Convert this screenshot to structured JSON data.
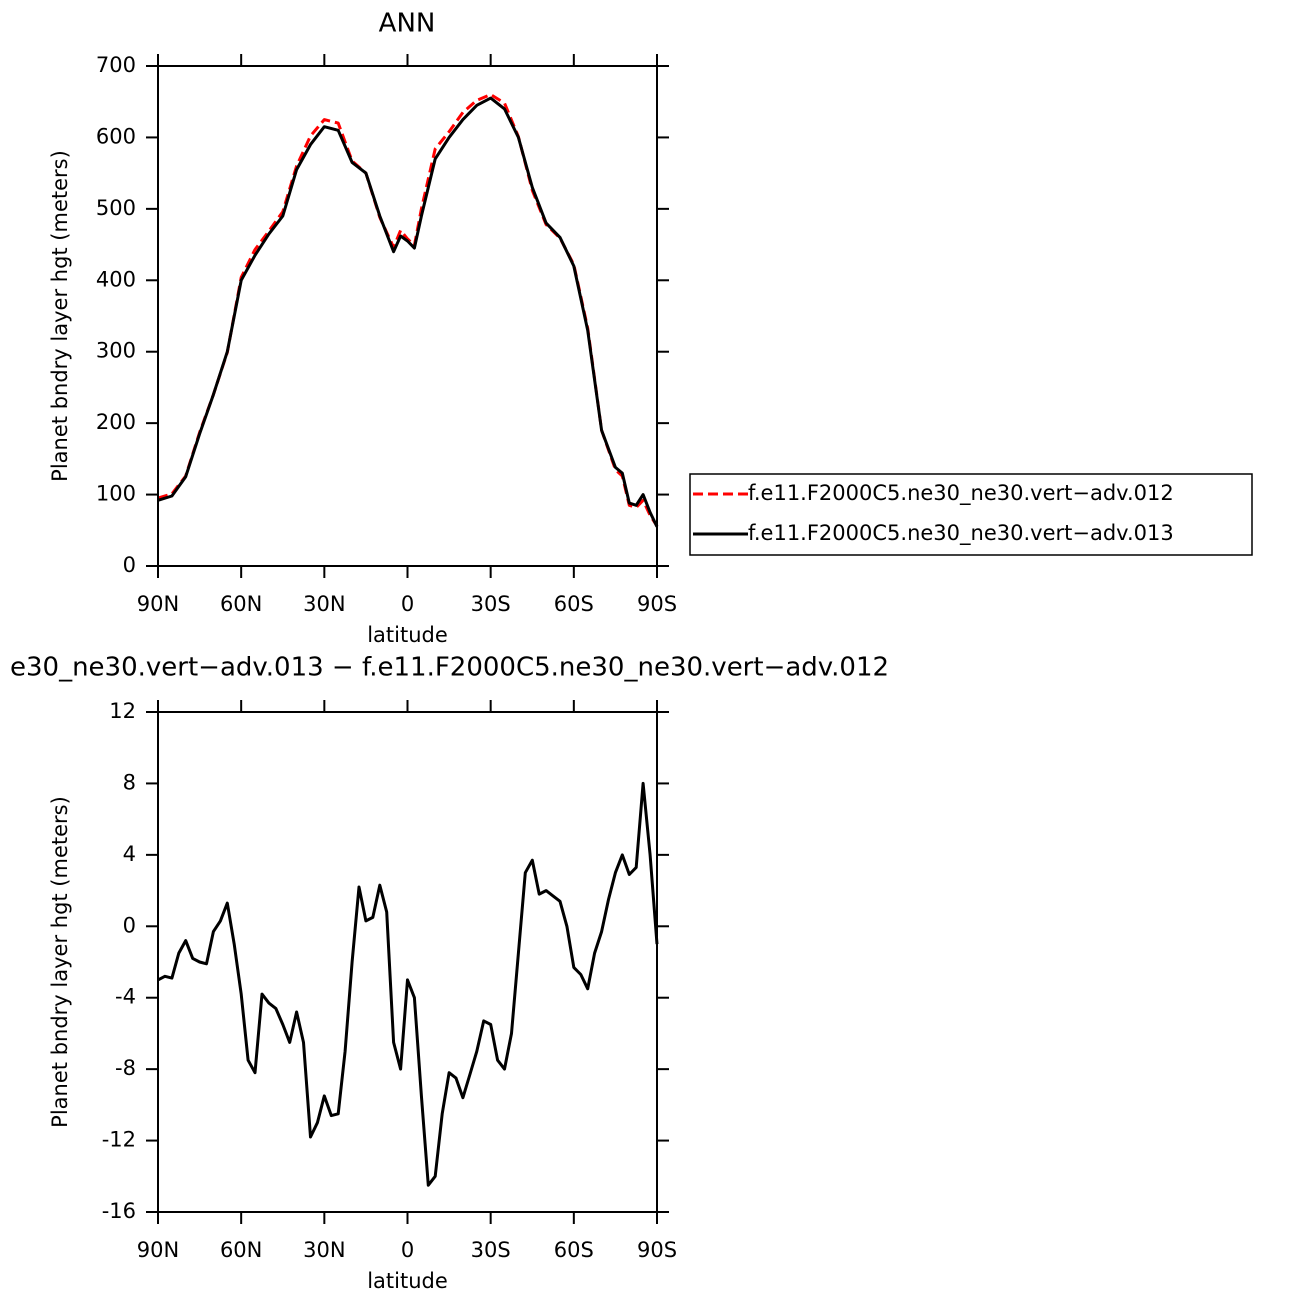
{
  "chart_data": [
    {
      "type": "line",
      "title": "ANN",
      "x_label": "latitude",
      "y_label": "Planet bndry layer hgt (meters)",
      "x": [
        90,
        85,
        80,
        75,
        70,
        65,
        60,
        55,
        50,
        45,
        40,
        35,
        30,
        25,
        20,
        15,
        10,
        5,
        2.5,
        0,
        -2.5,
        -5,
        -10,
        -15,
        -20,
        -25,
        -30,
        -35,
        -40,
        -45,
        -50,
        -55,
        -60,
        -65,
        -70,
        -75,
        -77.5,
        -80,
        -82.5,
        -85,
        -87.5,
        -90
      ],
      "series": [
        {
          "name": "f.e11.F2000C5.ne30_ne30.vert−adv.012",
          "color": "#ff0000",
          "dashed": true,
          "values": [
            95,
            101,
            126,
            187,
            240,
            299,
            404,
            443,
            469,
            496,
            560,
            602,
            625,
            620,
            567,
            550,
            488,
            446,
            470,
            458,
            449,
            500,
            584,
            608,
            635,
            652,
            660,
            648,
            601,
            526,
            478,
            459,
            422,
            333,
            190,
            135,
            126,
            85,
            82,
            92,
            71,
            56
          ]
        },
        {
          "name": "f.e11.F2000C5.ne30_ne30.vert−adv.013",
          "color": "#000000",
          "dashed": false,
          "values": [
            92,
            98,
            125,
            185,
            240,
            300,
            400,
            435,
            465,
            490,
            555,
            590,
            615,
            610,
            565,
            550,
            490,
            440,
            462,
            455,
            445,
            490,
            570,
            600,
            625,
            645,
            655,
            640,
            600,
            530,
            480,
            460,
            420,
            330,
            190,
            138,
            130,
            88,
            85,
            100,
            75,
            55
          ]
        }
      ],
      "xlim": [
        90,
        -90
      ],
      "xticks": [
        {
          "value": 90,
          "label": "90N"
        },
        {
          "value": 60,
          "label": "60N"
        },
        {
          "value": 30,
          "label": "30N"
        },
        0,
        {
          "value": -30,
          "label": "30S"
        },
        {
          "value": -60,
          "label": "60S"
        },
        {
          "value": -90,
          "label": "90S"
        }
      ],
      "ylim": [
        0,
        700
      ],
      "yticks": [
        0,
        100,
        200,
        300,
        400,
        500,
        600,
        700
      ],
      "legend": "right"
    },
    {
      "type": "line",
      "title": "e30_ne30.vert−adv.013 − f.e11.F2000C5.ne30_ne30.vert−adv.012",
      "x_label": "latitude",
      "y_label": "Planet bndry layer hgt (meters)",
      "x": [
        90,
        87.5,
        85,
        82.5,
        80,
        77.5,
        75,
        72.5,
        70,
        67.5,
        65,
        62.5,
        60,
        57.5,
        55,
        52.5,
        50,
        47.5,
        45,
        42.5,
        40,
        37.5,
        35,
        32.5,
        30,
        27.5,
        25,
        22.5,
        20,
        17.5,
        15,
        12.5,
        10,
        7.5,
        5,
        2.5,
        0,
        -2.5,
        -5,
        -7.5,
        -10,
        -12.5,
        -15,
        -17.5,
        -20,
        -22.5,
        -25,
        -27.5,
        -30,
        -32.5,
        -35,
        -37.5,
        -40,
        -42.5,
        -45,
        -47.5,
        -50,
        -52.5,
        -55,
        -57.5,
        -60,
        -62.5,
        -65,
        -67.5,
        -70,
        -72.5,
        -75,
        -77.5,
        -80,
        -82.5,
        -85,
        -87.5,
        -90
      ],
      "values": [
        -3,
        -2.8,
        -2.9,
        -1.5,
        -0.8,
        -1.8,
        -2,
        -2.1,
        -0.3,
        0.3,
        1.3,
        -1,
        -3.8,
        -7.5,
        -8.2,
        -3.8,
        -4.3,
        -4.6,
        -5.5,
        -6.5,
        -4.8,
        -6.5,
        -11.8,
        -11,
        -9.5,
        -10.6,
        -10.5,
        -7,
        -2,
        2.2,
        0.3,
        0.5,
        2.3,
        0.8,
        -6.5,
        -8,
        -3,
        -4,
        -9.5,
        -14.5,
        -14,
        -10.5,
        -8.2,
        -8.5,
        -9.6,
        -8.3,
        -7,
        -5.3,
        -5.5,
        -7.5,
        -8,
        -6,
        -1.5,
        3,
        3.7,
        1.8,
        2,
        1.7,
        1.4,
        0,
        -2.3,
        -2.7,
        -3.5,
        -1.5,
        -0.3,
        1.5,
        3,
        4,
        2.9,
        3.3,
        8,
        4,
        -1
      ],
      "color": "#000000",
      "xlim": [
        90,
        -90
      ],
      "xticks": [
        {
          "value": 90,
          "label": "90N"
        },
        {
          "value": 60,
          "label": "60N"
        },
        {
          "value": 30,
          "label": "30N"
        },
        0,
        {
          "value": -30,
          "label": "30S"
        },
        {
          "value": -60,
          "label": "60S"
        },
        {
          "value": -90,
          "label": "90S"
        }
      ],
      "ylim": [
        -16,
        12
      ],
      "yticks": [
        -16,
        -12,
        -8,
        -4,
        0,
        4,
        8,
        12
      ]
    }
  ]
}
